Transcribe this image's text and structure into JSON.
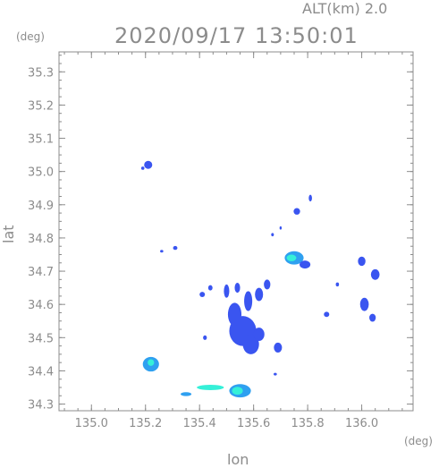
{
  "header": {
    "altitude_label": "ALT(km)  2.0",
    "timestamp": "2020/09/17 13:50:01"
  },
  "colors": {
    "axis": "#8c8c8c",
    "echo_weak": "#3a55f0",
    "echo_moderate": "#2fa0f0",
    "echo_strong": "#35f0d8"
  },
  "chart_data": {
    "type": "scatter",
    "xlabel": "lon",
    "ylabel": "lat",
    "x_unit": "(deg)",
    "y_unit": "(deg)",
    "xlim": [
      134.88,
      136.19
    ],
    "ylim": [
      34.28,
      35.36
    ],
    "x_ticks": [
      "135.0",
      "135.2",
      "135.4",
      "135.6",
      "135.8",
      "136.0"
    ],
    "y_ticks": [
      "34.3",
      "34.4",
      "34.5",
      "34.6",
      "34.7",
      "34.8",
      "34.9",
      "35.0",
      "35.1",
      "35.2",
      "35.3"
    ],
    "grid": false,
    "points": [
      {
        "x": 135.21,
        "y": 35.02,
        "rx": 0.015,
        "ry": 0.012,
        "c": "weak"
      },
      {
        "x": 135.19,
        "y": 35.01,
        "rx": 0.006,
        "ry": 0.005,
        "c": "weak"
      },
      {
        "x": 135.22,
        "y": 34.42,
        "rx": 0.03,
        "ry": 0.022,
        "c": "moderate"
      },
      {
        "x": 135.22,
        "y": 34.425,
        "rx": 0.012,
        "ry": 0.01,
        "c": "strong"
      },
      {
        "x": 135.55,
        "y": 34.34,
        "rx": 0.04,
        "ry": 0.02,
        "c": "moderate"
      },
      {
        "x": 135.54,
        "y": 34.34,
        "rx": 0.02,
        "ry": 0.012,
        "c": "strong"
      },
      {
        "x": 135.44,
        "y": 34.35,
        "rx": 0.05,
        "ry": 0.008,
        "c": "strong"
      },
      {
        "x": 135.35,
        "y": 34.33,
        "rx": 0.02,
        "ry": 0.006,
        "c": "moderate"
      },
      {
        "x": 135.56,
        "y": 34.52,
        "rx": 0.05,
        "ry": 0.045,
        "c": "weak"
      },
      {
        "x": 135.59,
        "y": 34.48,
        "rx": 0.03,
        "ry": 0.03,
        "c": "weak"
      },
      {
        "x": 135.53,
        "y": 34.57,
        "rx": 0.025,
        "ry": 0.035,
        "c": "weak"
      },
      {
        "x": 135.62,
        "y": 34.51,
        "rx": 0.02,
        "ry": 0.02,
        "c": "weak"
      },
      {
        "x": 135.58,
        "y": 34.61,
        "rx": 0.015,
        "ry": 0.03,
        "c": "weak"
      },
      {
        "x": 135.62,
        "y": 34.63,
        "rx": 0.015,
        "ry": 0.02,
        "c": "weak"
      },
      {
        "x": 135.65,
        "y": 34.66,
        "rx": 0.012,
        "ry": 0.015,
        "c": "weak"
      },
      {
        "x": 135.5,
        "y": 34.64,
        "rx": 0.01,
        "ry": 0.02,
        "c": "weak"
      },
      {
        "x": 135.54,
        "y": 34.65,
        "rx": 0.01,
        "ry": 0.015,
        "c": "weak"
      },
      {
        "x": 135.44,
        "y": 34.65,
        "rx": 0.008,
        "ry": 0.008,
        "c": "weak"
      },
      {
        "x": 135.42,
        "y": 34.5,
        "rx": 0.007,
        "ry": 0.007,
        "c": "weak"
      },
      {
        "x": 135.69,
        "y": 34.47,
        "rx": 0.015,
        "ry": 0.015,
        "c": "weak"
      },
      {
        "x": 135.75,
        "y": 34.74,
        "rx": 0.035,
        "ry": 0.02,
        "c": "moderate"
      },
      {
        "x": 135.74,
        "y": 34.74,
        "rx": 0.018,
        "ry": 0.01,
        "c": "strong"
      },
      {
        "x": 135.79,
        "y": 34.72,
        "rx": 0.02,
        "ry": 0.012,
        "c": "weak"
      },
      {
        "x": 135.76,
        "y": 34.88,
        "rx": 0.012,
        "ry": 0.01,
        "c": "weak"
      },
      {
        "x": 135.81,
        "y": 34.92,
        "rx": 0.006,
        "ry": 0.01,
        "c": "weak"
      },
      {
        "x": 136.0,
        "y": 34.73,
        "rx": 0.014,
        "ry": 0.014,
        "c": "weak"
      },
      {
        "x": 136.05,
        "y": 34.69,
        "rx": 0.016,
        "ry": 0.016,
        "c": "weak"
      },
      {
        "x": 136.01,
        "y": 34.6,
        "rx": 0.016,
        "ry": 0.02,
        "c": "weak"
      },
      {
        "x": 136.04,
        "y": 34.56,
        "rx": 0.012,
        "ry": 0.012,
        "c": "weak"
      },
      {
        "x": 135.87,
        "y": 34.57,
        "rx": 0.01,
        "ry": 0.008,
        "c": "weak"
      },
      {
        "x": 135.91,
        "y": 34.66,
        "rx": 0.006,
        "ry": 0.006,
        "c": "weak"
      },
      {
        "x": 135.31,
        "y": 34.77,
        "rx": 0.008,
        "ry": 0.006,
        "c": "weak"
      },
      {
        "x": 135.26,
        "y": 34.76,
        "rx": 0.006,
        "ry": 0.004,
        "c": "weak"
      },
      {
        "x": 135.41,
        "y": 34.63,
        "rx": 0.01,
        "ry": 0.008,
        "c": "weak"
      },
      {
        "x": 135.67,
        "y": 34.81,
        "rx": 0.005,
        "ry": 0.005,
        "c": "weak"
      },
      {
        "x": 135.7,
        "y": 34.83,
        "rx": 0.004,
        "ry": 0.005,
        "c": "weak"
      },
      {
        "x": 135.68,
        "y": 34.39,
        "rx": 0.006,
        "ry": 0.004,
        "c": "weak"
      }
    ]
  }
}
